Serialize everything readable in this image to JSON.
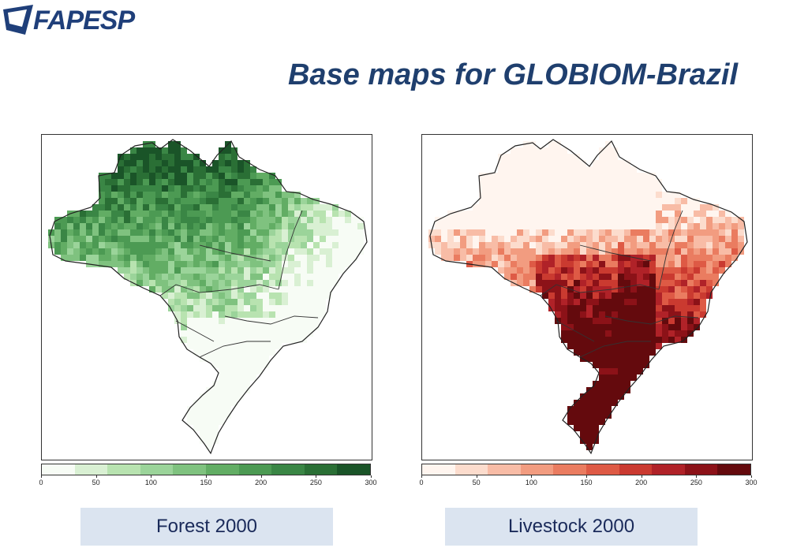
{
  "logo": {
    "text": "FAPESP"
  },
  "title": "Base maps for GLOBIOM-Brazil",
  "maps": [
    {
      "caption": "Forest 2000",
      "colors": [
        "#f7fcf5",
        "#d9f0d3",
        "#b8e3b0",
        "#9bd49a",
        "#7fc27f",
        "#62ad64",
        "#4c9a53",
        "#3a8645",
        "#2a6f35",
        "#1a5428"
      ],
      "legend": {
        "ticks": [
          "0",
          "50",
          "100",
          "150",
          "200",
          "250",
          "300"
        ]
      }
    },
    {
      "caption": "Livestock 2000",
      "colors": [
        "#fff5ef",
        "#fcdccd",
        "#f8bca6",
        "#f29c80",
        "#ea7c60",
        "#de5a45",
        "#ca3a30",
        "#b02228",
        "#8c1218",
        "#640a0d"
      ],
      "legend": {
        "ticks": [
          "0",
          "50",
          "100",
          "150",
          "200",
          "250",
          "300"
        ]
      }
    }
  ]
}
